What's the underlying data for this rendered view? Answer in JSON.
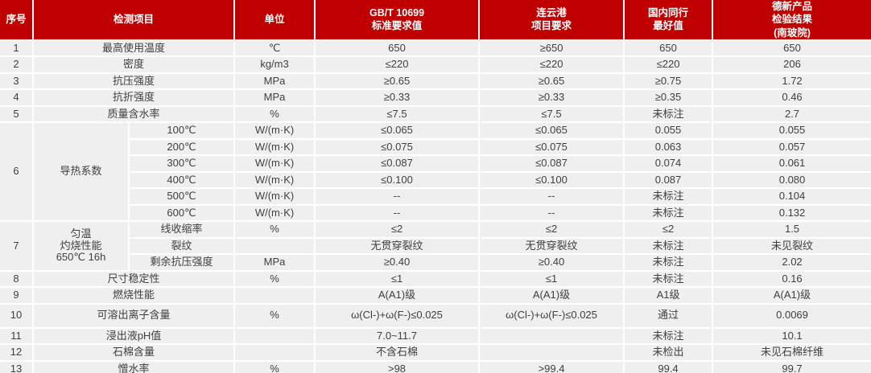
{
  "colors": {
    "header_bg": "#c00000",
    "header_text": "#ffffff",
    "row_bg": "#efefef",
    "body_text": "#3f3f3f",
    "separator": "#ffffff"
  },
  "table": {
    "columns": [
      {
        "key": "no",
        "label": "序号"
      },
      {
        "key": "item",
        "label": "检测项目"
      },
      {
        "key": "unit",
        "label": "单位"
      },
      {
        "key": "gbt",
        "label": "GB/T 10699\n标准要求值"
      },
      {
        "key": "lyg",
        "label": "连云港\n项目要求"
      },
      {
        "key": "peer",
        "label": "国内同行\n最好值"
      },
      {
        "key": "dexin",
        "label": "德新产品\n检验结果\n(南玻院)"
      }
    ],
    "rows": [
      {
        "no": "1",
        "item": "最高使用温度",
        "unit": "℃",
        "gbt": "650",
        "lyg": "≥650",
        "peer": "650",
        "dexin": "650"
      },
      {
        "no": "2",
        "item": "密度",
        "unit": "kg/m3",
        "gbt": "≤220",
        "lyg": "≤220",
        "peer": "≤220",
        "dexin": "206"
      },
      {
        "no": "3",
        "item": "抗压强度",
        "unit": "MPa",
        "gbt": "≥0.65",
        "lyg": "≥0.65",
        "peer": "≥0.75",
        "dexin": "1.72"
      },
      {
        "no": "4",
        "item": "抗折强度",
        "unit": "MPa",
        "gbt": "≥0.33",
        "lyg": "≥0.33",
        "peer": "≥0.35",
        "dexin": "0.46"
      },
      {
        "no": "5",
        "item": "质量含水率",
        "unit": "%",
        "gbt": "≤7.5",
        "lyg": "≤7.5",
        "peer": "未标注",
        "dexin": "2.7"
      },
      {
        "no": "6",
        "item": "导热系数",
        "subs": [
          {
            "sub": "100℃",
            "unit": "W/(m·K)",
            "gbt": "≤0.065",
            "lyg": "≤0.065",
            "peer": "0.055",
            "dexin": "0.055"
          },
          {
            "sub": "200℃",
            "unit": "W/(m·K)",
            "gbt": "≤0.075",
            "lyg": "≤0.075",
            "peer": "0.063",
            "dexin": "0.057"
          },
          {
            "sub": "300℃",
            "unit": "W/(m·K)",
            "gbt": "≤0.087",
            "lyg": "≤0.087",
            "peer": "0.074",
            "dexin": "0.061"
          },
          {
            "sub": "400℃",
            "unit": "W/(m·K)",
            "gbt": "≤0.100",
            "lyg": "≤0.100",
            "peer": "0.087",
            "dexin": "0.080"
          },
          {
            "sub": "500℃",
            "unit": "W/(m·K)",
            "gbt": "--",
            "lyg": "--",
            "peer": "未标注",
            "dexin": "0.104"
          },
          {
            "sub": "600℃",
            "unit": "W/(m·K)",
            "gbt": "--",
            "lyg": "--",
            "peer": "未标注",
            "dexin": "0.132"
          }
        ]
      },
      {
        "no": "7",
        "item": "匀温\n灼烧性能\n650℃ 16h",
        "subs": [
          {
            "sub": "线收缩率",
            "unit": "%",
            "gbt": "≤2",
            "lyg": "≤2",
            "peer": "≤2",
            "dexin": "1.5"
          },
          {
            "sub": "裂纹",
            "unit": "",
            "gbt": "无贯穿裂纹",
            "lyg": "无贯穿裂纹",
            "peer": "未标注",
            "dexin": "未见裂纹"
          },
          {
            "sub": "剩余抗压强度",
            "unit": "MPa",
            "gbt": "≥0.40",
            "lyg": "≥0.40",
            "peer": "未标注",
            "dexin": "2.02"
          }
        ]
      },
      {
        "no": "8",
        "item": "尺寸稳定性",
        "unit": "%",
        "gbt": "≤1",
        "lyg": "≤1",
        "peer": "未标注",
        "dexin": "0.16"
      },
      {
        "no": "9",
        "item": "燃烧性能",
        "unit": "",
        "gbt": "A(A1)级",
        "lyg": "A(A1)级",
        "peer": "A1级",
        "dexin": "A(A1)级"
      },
      {
        "no": "10",
        "item": "可溶出离子含量",
        "unit": "%",
        "gbt": "ω(Cl-)+ω(F-)≤0.025",
        "lyg": "ω(Cl-)+ω(F-)≤0.025",
        "peer": "通过",
        "dexin": "0.0069",
        "tall": true
      },
      {
        "no": "11",
        "item": "浸出液pH值",
        "unit": "",
        "gbt": "7.0~11.7",
        "lyg": "",
        "peer": "未标注",
        "dexin": "10.1"
      },
      {
        "no": "12",
        "item": "石棉含量",
        "unit": "",
        "gbt": "不含石棉",
        "lyg": "",
        "peer": "未检出",
        "dexin": "未见石棉纤维"
      },
      {
        "no": "13",
        "item": "憎水率",
        "unit": "%",
        "gbt": ">98",
        "lyg": ">99.4",
        "peer": "99.4",
        "dexin": "99.7"
      }
    ]
  }
}
